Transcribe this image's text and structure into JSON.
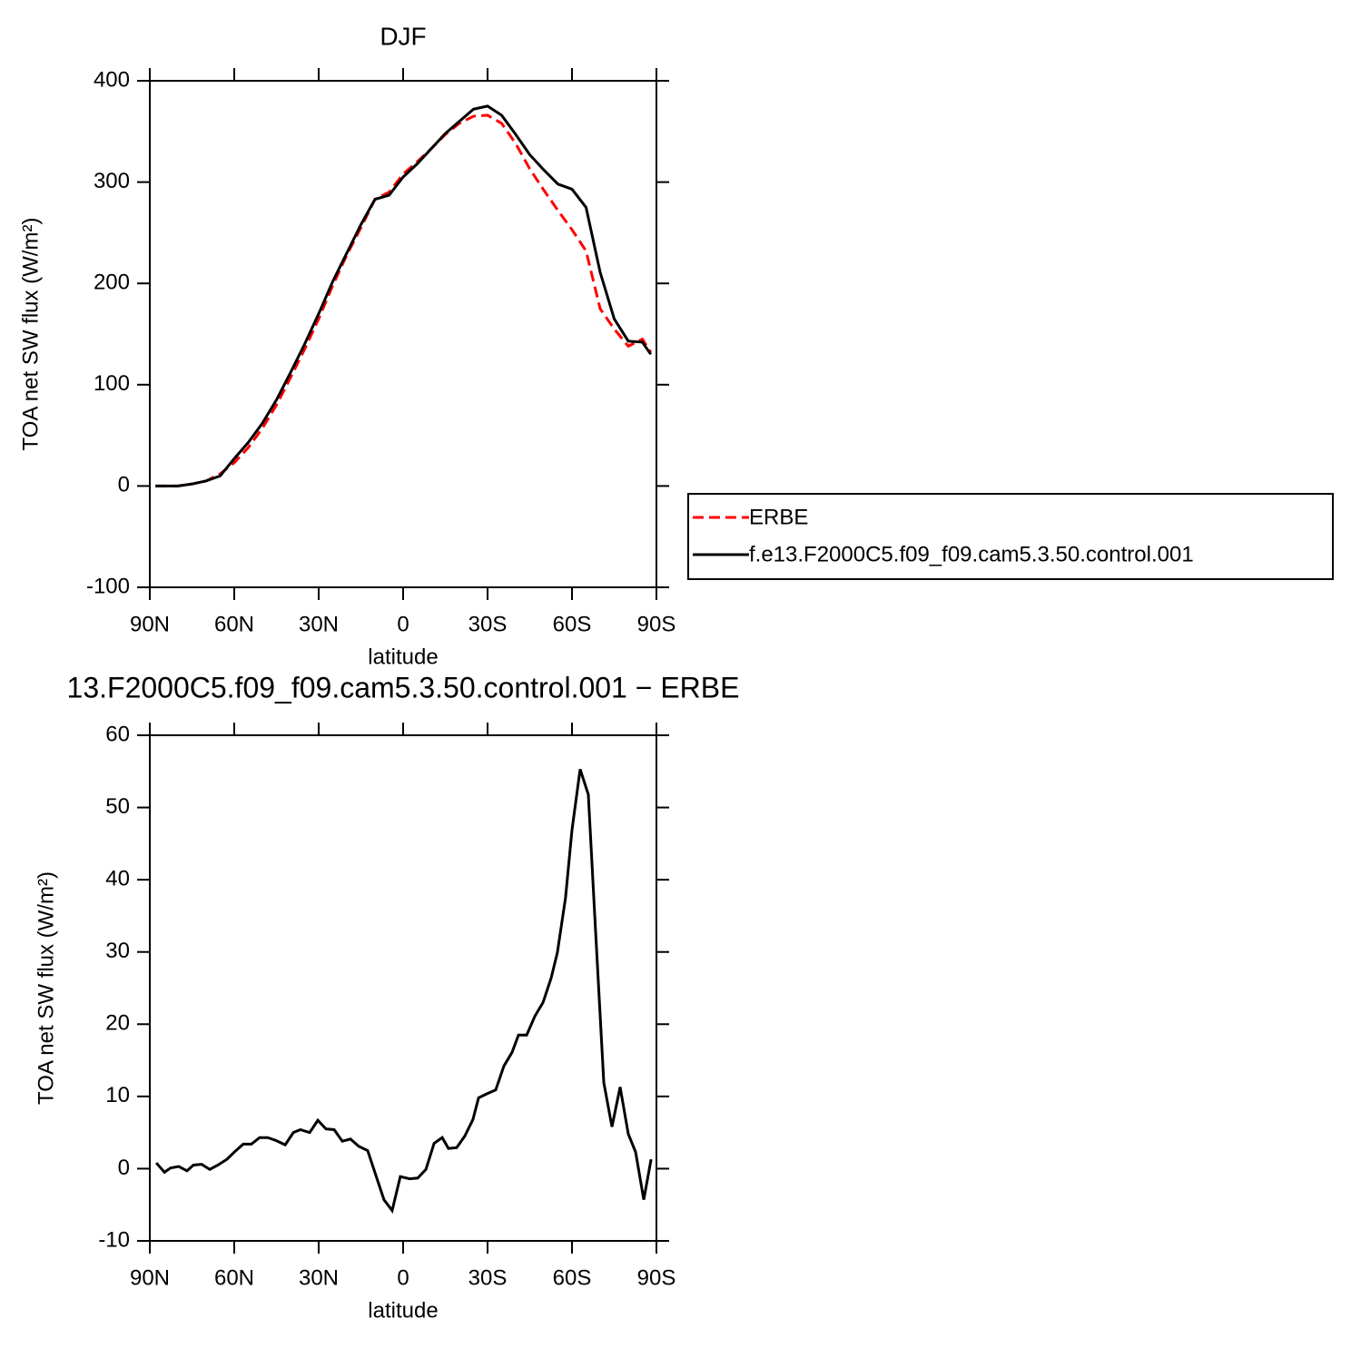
{
  "chart_data": [
    {
      "type": "line",
      "title": "DJF",
      "xlabel": "latitude",
      "ylabel": "TOA net SW flux (W/m²)",
      "x": [
        88,
        85,
        80,
        75,
        70,
        65,
        60,
        55,
        50,
        45,
        40,
        35,
        30,
        25,
        20,
        15,
        10,
        5,
        0,
        -5,
        -10,
        -15,
        -20,
        -25,
        -30,
        -35,
        -40,
        -45,
        -50,
        -55,
        -60,
        -65,
        -70,
        -75,
        -80,
        -85,
        -88
      ],
      "xlim": [
        90,
        -90
      ],
      "xticks": [
        {
          "value": 90,
          "label": "90N"
        },
        {
          "value": 60,
          "label": "60N"
        },
        {
          "value": 30,
          "label": "30N"
        },
        0,
        {
          "value": -30,
          "label": "30S"
        },
        {
          "value": -60,
          "label": "60S"
        },
        {
          "value": -90,
          "label": "90S"
        }
      ],
      "ylim": [
        -100,
        400
      ],
      "yticks": [
        -100,
        0,
        100,
        200,
        300,
        400
      ],
      "legend": "right",
      "series": [
        {
          "name": "ERBE",
          "color": "#ff0000",
          "linestyle": "dashed",
          "values": [
            0,
            0,
            0,
            2,
            5,
            12,
            23,
            38,
            57,
            80,
            107,
            135,
            165,
            198,
            228,
            255,
            283,
            290,
            308,
            320,
            333,
            347,
            358,
            365,
            366,
            358,
            338,
            313,
            292,
            272,
            253,
            232,
            175,
            155,
            138,
            145,
            132
          ]
        },
        {
          "name": "f.e13.F2000C5.f09_f09.cam5.3.50.control.001",
          "color": "#000000",
          "linestyle": "solid",
          "values": [
            0,
            0,
            0,
            2,
            5,
            10,
            27,
            43,
            62,
            85,
            112,
            140,
            170,
            202,
            230,
            258,
            283,
            287,
            305,
            318,
            333,
            348,
            360,
            372,
            375,
            366,
            347,
            327,
            312,
            298,
            293,
            275,
            211,
            165,
            143,
            142,
            130
          ]
        }
      ]
    },
    {
      "type": "line",
      "title": "13.F2000C5.f09_f09.cam5.3.50.control.001 − ERBE",
      "xlabel": "latitude",
      "ylabel": "TOA net SW flux (W/m²)",
      "x": [
        87.7,
        84.8,
        82.6,
        79.7,
        76.8,
        74.5,
        71.6,
        68.7,
        65.8,
        62.6,
        59.7,
        56.8,
        53.9,
        51.0,
        48.1,
        45.2,
        41.9,
        39.0,
        36.5,
        33.2,
        30.3,
        27.4,
        24.5,
        21.6,
        18.7,
        15.8,
        12.6,
        9.7,
        6.8,
        3.9,
        1.0,
        -2.3,
        -5.2,
        -8.1,
        -11.0,
        -13.9,
        -16.1,
        -19.0,
        -21.9,
        -24.8,
        -26.8,
        -30.0,
        -32.9,
        -35.8,
        -38.7,
        -41.0,
        -43.9,
        -46.8,
        -49.7,
        -52.6,
        -54.8,
        -57.7,
        -60.0,
        -62.9,
        -65.8,
        -68.1,
        -71.3,
        -74.2,
        -77.1,
        -80.0,
        -82.6,
        -85.5,
        -88.1
      ],
      "xlim": [
        90,
        -90
      ],
      "xticks": [
        {
          "value": 90,
          "label": "90N"
        },
        {
          "value": 60,
          "label": "60N"
        },
        {
          "value": 30,
          "label": "30N"
        },
        0,
        {
          "value": -30,
          "label": "30S"
        },
        {
          "value": -60,
          "label": "60S"
        },
        {
          "value": -90,
          "label": "90S"
        }
      ],
      "ylim": [
        -10,
        60
      ],
      "yticks": [
        -10,
        0,
        10,
        20,
        30,
        40,
        50,
        60
      ],
      "series": [
        {
          "color": "#000000",
          "linestyle": "solid",
          "values": [
            0.8,
            -0.5,
            0.1,
            0.3,
            -0.3,
            0.5,
            0.6,
            -0.1,
            0.5,
            1.3,
            2.4,
            3.4,
            3.4,
            4.3,
            4.3,
            3.9,
            3.3,
            5.0,
            5.4,
            5.0,
            6.7,
            5.5,
            5.4,
            3.8,
            4.1,
            3.1,
            2.5,
            -0.9,
            -4.3,
            -5.8,
            -1.1,
            -1.4,
            -1.3,
            -0.1,
            3.5,
            4.3,
            2.8,
            2.9,
            4.5,
            6.8,
            9.8,
            10.4,
            10.9,
            14.2,
            16.1,
            18.5,
            18.5,
            21.1,
            23.0,
            26.4,
            29.9,
            37.5,
            46.9,
            55.3,
            51.8,
            34.9,
            11.9,
            5.8,
            11.3,
            4.8,
            2.3,
            -4.3,
            1.3
          ]
        }
      ]
    }
  ]
}
